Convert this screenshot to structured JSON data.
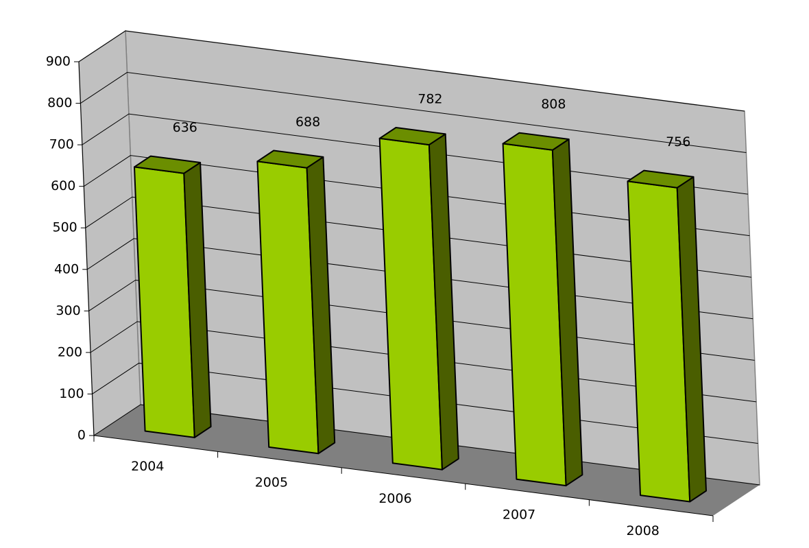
{
  "chart_data": {
    "type": "bar3d",
    "categories": [
      "2004",
      "2005",
      "2006",
      "2007",
      "2008"
    ],
    "values": [
      636,
      688,
      782,
      808,
      756
    ],
    "color": "#99cc00",
    "ylim": [
      0,
      900
    ],
    "yticks": [
      0,
      100,
      200,
      300,
      400,
      500,
      600,
      700,
      800,
      900
    ],
    "grid": true
  }
}
